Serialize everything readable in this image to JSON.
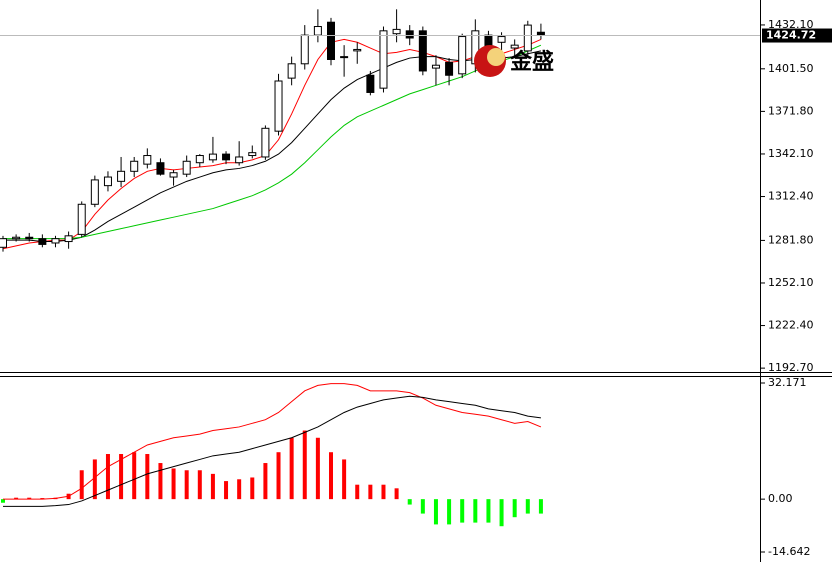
{
  "chart_data": [
    {
      "type": "candlestick",
      "open": [
        1277,
        1283,
        1284,
        1283,
        1280,
        1281,
        1286,
        1307,
        1320,
        1323,
        1330,
        1335,
        1336,
        1326,
        1328,
        1336,
        1338,
        1342,
        1336,
        1341,
        1340,
        1358,
        1395,
        1405,
        1425,
        1434,
        1410,
        1414,
        1397,
        1388,
        1426,
        1428,
        1428,
        1402,
        1406,
        1398,
        1405,
        1425,
        1420,
        1416,
        1414,
        1427
      ],
      "high": [
        1285,
        1286,
        1287,
        1286,
        1285,
        1288,
        1309,
        1327,
        1330,
        1340,
        1340,
        1346,
        1339,
        1331,
        1341,
        1342,
        1354,
        1344,
        1351,
        1348,
        1362,
        1398,
        1410,
        1432,
        1443,
        1437,
        1418,
        1420,
        1400,
        1431,
        1443,
        1432,
        1431,
        1411,
        1409,
        1426,
        1436,
        1428,
        1427,
        1422,
        1435,
        1433
      ],
      "low": [
        1274,
        1281,
        1281,
        1277,
        1277,
        1276,
        1284,
        1305,
        1316,
        1319,
        1326,
        1332,
        1327,
        1320,
        1326,
        1333,
        1336,
        1335,
        1334,
        1339,
        1338,
        1355,
        1390,
        1401,
        1420,
        1404,
        1396,
        1405,
        1383,
        1385,
        1420,
        1418,
        1397,
        1390,
        1390,
        1395,
        1399,
        1410,
        1412,
        1409,
        1410,
        1422
      ],
      "close": [
        1283,
        1284,
        1283,
        1279,
        1283,
        1285,
        1307,
        1324,
        1326,
        1330,
        1337,
        1341,
        1328,
        1329,
        1337,
        1341,
        1342,
        1338,
        1340,
        1343,
        1360,
        1393,
        1405,
        1425,
        1431,
        1408,
        1410,
        1415,
        1385,
        1428,
        1429,
        1423,
        1400,
        1404,
        1397,
        1424,
        1428,
        1415,
        1424,
        1418,
        1432,
        1425
      ],
      "up_color": "#ffffff",
      "down_color": "#000000",
      "lines": [
        {
          "color": "#ff0000",
          "values": [
            1276,
            1278,
            1280,
            1281,
            1282,
            1282,
            1288,
            1300,
            1310,
            1318,
            1325,
            1330,
            1332,
            1331,
            1332,
            1333,
            1334,
            1336,
            1336,
            1338,
            1341,
            1352,
            1370,
            1390,
            1408,
            1420,
            1422,
            1420,
            1416,
            1412,
            1413,
            1415,
            1413,
            1410,
            1406,
            1407,
            1410,
            1411,
            1412,
            1415,
            1418,
            1422
          ]
        },
        {
          "color": "#000000",
          "values": [
            1282,
            1282,
            1282,
            1281,
            1281,
            1282,
            1284,
            1289,
            1295,
            1300,
            1305,
            1310,
            1315,
            1319,
            1323,
            1326,
            1329,
            1331,
            1332,
            1334,
            1337,
            1342,
            1350,
            1360,
            1370,
            1380,
            1388,
            1394,
            1398,
            1402,
            1406,
            1409,
            1410,
            1410,
            1408,
            1407,
            1408,
            1408,
            1409,
            1410,
            1412,
            1414
          ]
        },
        {
          "color": "#00c800",
          "values": [
            1283,
            1283,
            1283,
            1283,
            1283,
            1283,
            1284,
            1286,
            1288,
            1290,
            1292,
            1294,
            1296,
            1298,
            1300,
            1302,
            1304,
            1307,
            1310,
            1313,
            1317,
            1322,
            1328,
            1336,
            1345,
            1354,
            1362,
            1368,
            1372,
            1376,
            1380,
            1384,
            1387,
            1390,
            1393,
            1396,
            1400,
            1404,
            1407,
            1410,
            1414,
            1418
          ]
        }
      ],
      "ylim": [
        1190,
        1449.5
      ],
      "yticks": [
        {
          "value": 1432.1,
          "label": "1432.10"
        },
        {
          "value": 1401.5,
          "label": "1401.50"
        },
        {
          "value": 1371.8,
          "label": "1371.80"
        },
        {
          "value": 1342.1,
          "label": "1342.10"
        },
        {
          "value": 1312.4,
          "label": "1312.40"
        },
        {
          "value": 1281.8,
          "label": "1281.80"
        },
        {
          "value": 1252.1,
          "label": "1252.10"
        },
        {
          "value": 1222.4,
          "label": "1222.40"
        },
        {
          "value": 1192.7,
          "label": "1192.70"
        }
      ],
      "last_price": 1424.72,
      "watermark": "金盛"
    },
    {
      "type": "macd",
      "histogram": [
        -1,
        0.4,
        0.4,
        0.3,
        0.4,
        1.5,
        8,
        11,
        12.5,
        12.5,
        13,
        12.5,
        10,
        8.5,
        8,
        8,
        7,
        5,
        5.5,
        6,
        10,
        13,
        17,
        19,
        17,
        13,
        11,
        4,
        4,
        4,
        3,
        -1.5,
        -4,
        -7,
        -7,
        -6.5,
        -6.5,
        -6.5,
        -7.5,
        -5,
        -4,
        -4
      ],
      "positive_color": "#ff0000",
      "negative_color": "#00ff00",
      "lines": [
        {
          "color": "#ff0000",
          "values": [
            0,
            0,
            0,
            0,
            0.2,
            0.8,
            3,
            6,
            9,
            11,
            13,
            15,
            16,
            17,
            17.5,
            18,
            19,
            19.5,
            20,
            21,
            22,
            24,
            27,
            30,
            31.5,
            32,
            32,
            31.5,
            30,
            30,
            30,
            29.5,
            28,
            26,
            25,
            24,
            23.5,
            23,
            22,
            21,
            21.5,
            20
          ]
        },
        {
          "color": "#000000",
          "values": [
            -2,
            -2,
            -2,
            -2,
            -1.8,
            -1.5,
            -0.5,
            1,
            2.5,
            4,
            5.5,
            7,
            8,
            9,
            10,
            11,
            12,
            12.5,
            13,
            14,
            15,
            16,
            17,
            18.5,
            20,
            22,
            24,
            25.5,
            26.5,
            27.5,
            28,
            28.5,
            28.2,
            27.5,
            27,
            26.5,
            26,
            25,
            24.5,
            24,
            23,
            22.5
          ]
        }
      ],
      "ylim": [
        -14.642,
        32.171
      ],
      "yticks": [
        32.171,
        {
          "value": 0,
          "label": "0.00"
        },
        -14.642
      ]
    }
  ]
}
